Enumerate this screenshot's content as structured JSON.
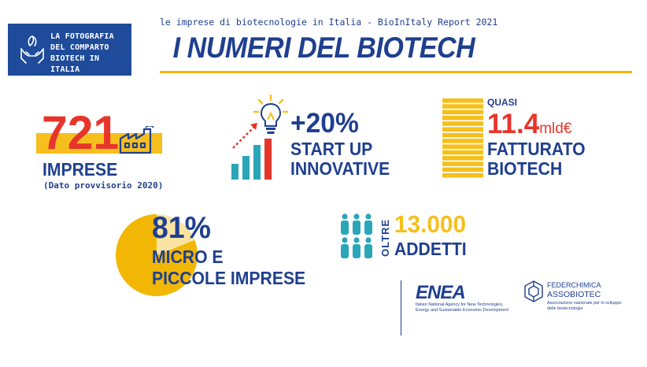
{
  "header": {
    "badge_lines": [
      "LA FOTOGRAFIA",
      "DEL COMPARTO",
      "BIOTECH IN ITALIA"
    ],
    "subtitle": "le imprese di biotecnologie in Italia - BioInItaly Report 2021",
    "title": "I NUMERI DEL BIOTECH"
  },
  "stats": {
    "imprese": {
      "value": "721",
      "label": "IMPRESE",
      "note": "(Dato provvisorio 2020)"
    },
    "startup": {
      "value": "+20%",
      "label_1": "START UP",
      "label_2": "INNOVATIVE"
    },
    "fatturato": {
      "prefix": "QUASI",
      "value": "11.4",
      "unit": "mld€",
      "label_1": "FATTURATO",
      "label_2": "BIOTECH"
    },
    "micro": {
      "value": "81%",
      "share": 0.81,
      "label_1": "MICRO E",
      "label_2": "PICCOLE IMPRESE"
    },
    "addetti": {
      "prefix": "OLTRE",
      "value": "13.000",
      "label": "ADDETTI"
    }
  },
  "logos": {
    "enea": {
      "name": "ENEA",
      "line_1": "Italian National Agency for New Technologies,",
      "line_2": "Energy and Sustainable Economic Development"
    },
    "assobiotec": {
      "line_1": "FEDERCHIMICA",
      "line_2": "ASSOBIOTEC",
      "line_3": "Associazione nazionale per lo sviluppo",
      "line_4": "delle biotecnologie"
    }
  },
  "colors": {
    "navy": "#1f3f8f",
    "badge_blue": "#1f4b9b",
    "yellow": "#f6bf1d",
    "red": "#e8352b",
    "teal": "#2aa6b9",
    "pie_light": "#fbe3a1"
  },
  "icons": [
    "hands-leaf-icon",
    "factory-icon",
    "growth-chart-icon",
    "lightbulb-icon",
    "coin-stack-icon",
    "pie-chart-icon",
    "people-icon"
  ]
}
